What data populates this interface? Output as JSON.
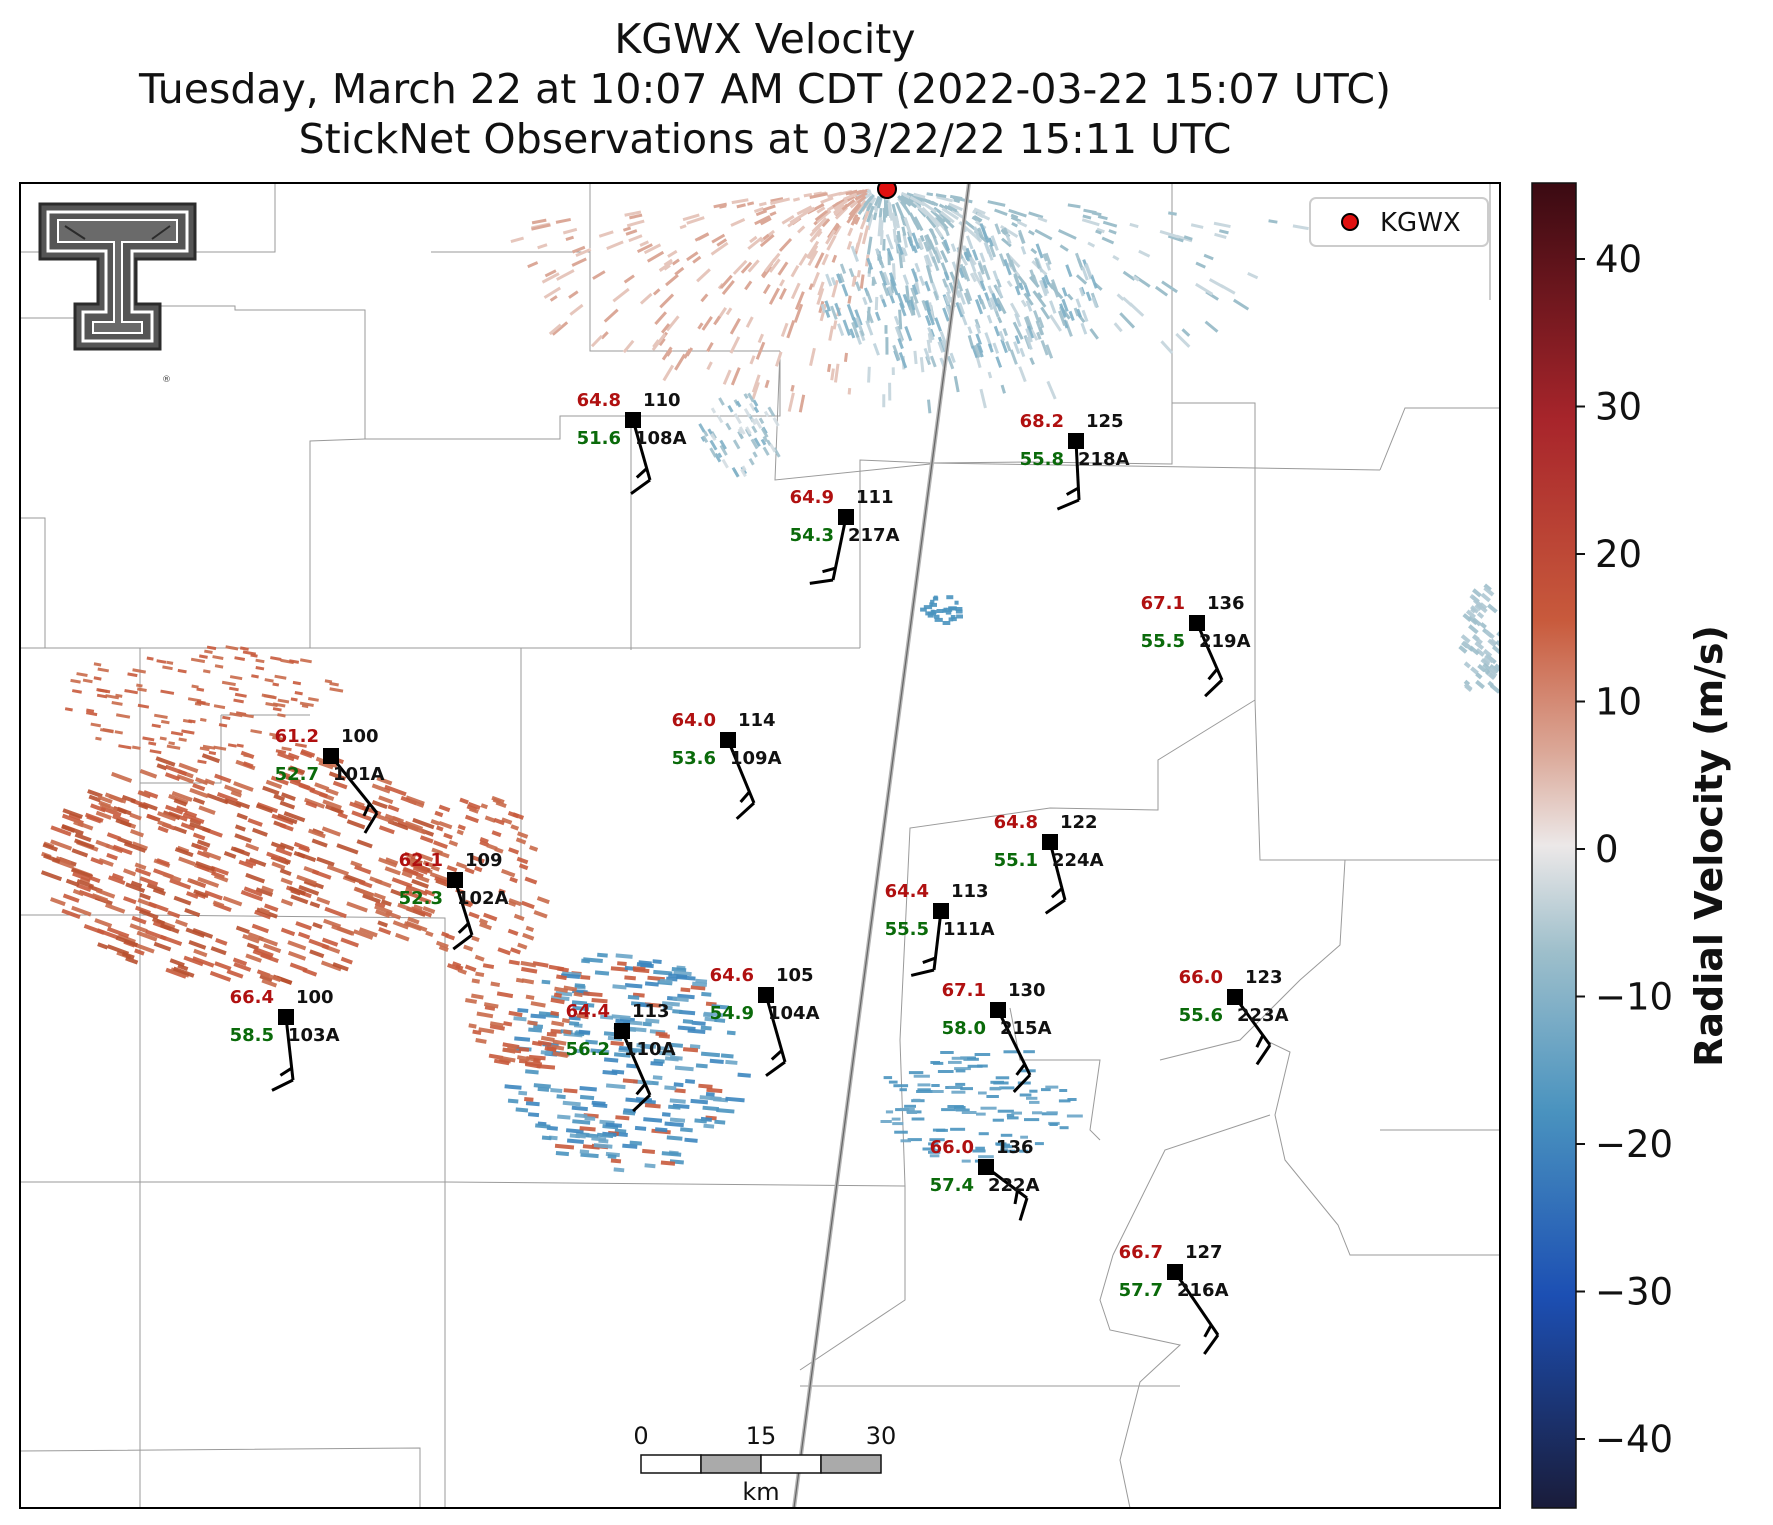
{
  "title": {
    "line1": "KGWX Velocity",
    "line2": "Tuesday, March 22 at 10:07 AM CDT (2022-03-22 15:07 UTC)",
    "line3": "StickNet Observations at 03/22/22 15:11 UTC"
  },
  "legend": {
    "label": "KGWX",
    "marker_color": "#e01010"
  },
  "colorbar": {
    "label": "Radial Velocity (m/s)",
    "ticks": [
      "40",
      "30",
      "20",
      "10",
      "0",
      "−10",
      "−20",
      "−30",
      "−40"
    ],
    "range": [
      -45,
      45
    ],
    "colors": {
      "max": "#3a0a12",
      "high": "#a8252b",
      "mid_high": "#c85a3c",
      "light_pos": "#dba898",
      "zero": "#ece8e8",
      "light_neg": "#9ebfcb",
      "mid_neg": "#4a93bf",
      "low": "#1c4fb3",
      "min": "#1a1c3a"
    }
  },
  "scale_bar": {
    "ticks": [
      "0",
      "15",
      "30"
    ],
    "unit": "km"
  },
  "logo": {
    "name": "Texas Tech Double T logo"
  },
  "station_text_colors": {
    "temperature": "#b01010",
    "dewpoint": "#0a6a0a",
    "id": "#111111"
  },
  "stations": [
    {
      "id": "108A",
      "temp": "64.8",
      "dew": "51.6",
      "dir": "110"
    },
    {
      "id": "217A",
      "temp": "64.9",
      "dew": "54.3",
      "dir": "111"
    },
    {
      "id": "218A",
      "temp": "68.2",
      "dew": "55.8",
      "dir": "125"
    },
    {
      "id": "219A",
      "temp": "67.1",
      "dew": "55.5",
      "dir": "136"
    },
    {
      "id": "109A",
      "temp": "64.0",
      "dew": "53.6",
      "dir": "114"
    },
    {
      "id": "101A",
      "temp": "61.2",
      "dew": "52.7",
      "dir": "100"
    },
    {
      "id": "224A",
      "temp": "64.8",
      "dew": "55.1",
      "dir": "122"
    },
    {
      "id": "102A",
      "temp": "62.1",
      "dew": "52.3",
      "dir": "109"
    },
    {
      "id": "111A",
      "temp": "64.4",
      "dew": "55.5",
      "dir": "113"
    },
    {
      "id": "104A",
      "temp": "64.6",
      "dew": "54.9",
      "dir": "105"
    },
    {
      "id": "215A",
      "temp": "67.1",
      "dew": "58.0",
      "dir": "130"
    },
    {
      "id": "223A",
      "temp": "66.0",
      "dew": "55.6",
      "dir": "123"
    },
    {
      "id": "103A",
      "temp": "66.4",
      "dew": "58.5",
      "dir": "100"
    },
    {
      "id": "110A",
      "temp": "64.4",
      "dew": "56.2",
      "dir": "113"
    },
    {
      "id": "222A",
      "temp": "66.0",
      "dew": "57.4",
      "dir": "136"
    },
    {
      "id": "216A",
      "temp": "66.7",
      "dew": "57.7",
      "dir": "127"
    }
  ]
}
